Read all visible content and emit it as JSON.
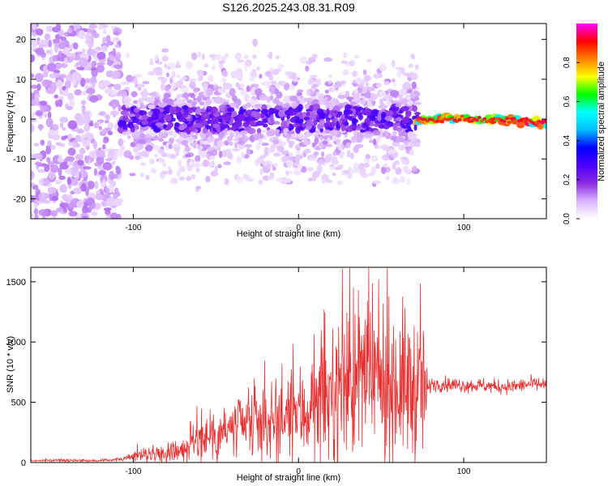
{
  "title": "S126.2025.243.08.31.R09",
  "colors": {
    "snr_line": "#e83030",
    "colormap": [
      "#ffffff",
      "#d9b3ff",
      "#8a2be2",
      "#4b00ff",
      "#0000ff",
      "#00bfff",
      "#00ffff",
      "#00ff00",
      "#ffff00",
      "#ff8000",
      "#ff0000",
      "#ff00ff"
    ]
  },
  "chart_data": [
    {
      "type": "heatmap",
      "xlabel": "Height of straight line (km)",
      "ylabel": "Frequency (Hz)",
      "xlim": [
        -162,
        150
      ],
      "ylim": [
        -25,
        24
      ],
      "xticks": [
        -100,
        0,
        100
      ],
      "yticks": [
        -20,
        -10,
        0,
        10,
        20
      ],
      "colorbar": {
        "label": "Normalized spectral amplitude",
        "range": [
          0.0,
          1.0
        ],
        "ticks": [
          0.0,
          0.2,
          0.4,
          0.6,
          0.8
        ]
      },
      "regions": [
        {
          "x": [
            -162,
            -108
          ],
          "freq_spread": [
            -25,
            24
          ],
          "amplitude": "low, scattered"
        },
        {
          "x": [
            -108,
            72
          ],
          "freq_center": 0,
          "freq_spread": [
            -12,
            12
          ],
          "amplitude": "0.05-0.3"
        },
        {
          "x": [
            72,
            150
          ],
          "freq_center": 0,
          "freq_spread": [
            -2,
            2
          ],
          "amplitude": "0.5-0.95"
        }
      ]
    },
    {
      "type": "line",
      "xlabel": "Height of straight line (km)",
      "ylabel": "SNR (10 * v/v)",
      "xlim": [
        -162,
        150
      ],
      "ylim": [
        0,
        1620
      ],
      "xticks": [
        -100,
        0,
        100
      ],
      "yticks": [
        0,
        500,
        1000,
        1500
      ],
      "series": [
        {
          "x": [
            -162,
            -140,
            -120,
            -105,
            -100,
            -90,
            -80,
            -70,
            -60,
            -50,
            -40,
            -30,
            -20,
            -10,
            0,
            10,
            20,
            30,
            40,
            50,
            60,
            70,
            78,
            80,
            90,
            100,
            110,
            120,
            130,
            140,
            150
          ],
          "values": [
            15,
            20,
            15,
            30,
            60,
            70,
            80,
            110,
            200,
            250,
            270,
            300,
            330,
            350,
            400,
            450,
            550,
            700,
            700,
            650,
            650,
            620,
            600,
            650,
            650,
            640,
            640,
            630,
            630,
            650,
            650
          ]
        }
      ]
    }
  ]
}
